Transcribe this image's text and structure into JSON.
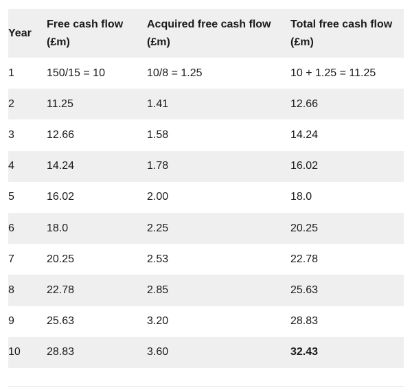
{
  "table": {
    "headers": {
      "year": "Year",
      "free_cash_flow": "Free cash flow (£m)",
      "acquired_free_cash_flow": "Acquired free cash flow (£m)",
      "total_free_cash_flow": "Total free cash flow (£m)"
    },
    "rows": [
      {
        "year": "1",
        "fcf": "150/15 = 10",
        "acquired": "10/8 = 1.25",
        "total": "10 + 1.25 = 11.25"
      },
      {
        "year": "2",
        "fcf": "11.25",
        "acquired": "1.41",
        "total": "12.66"
      },
      {
        "year": "3",
        "fcf": "12.66",
        "acquired": "1.58",
        "total": "14.24"
      },
      {
        "year": "4",
        "fcf": "14.24",
        "acquired": "1.78",
        "total": "16.02"
      },
      {
        "year": "5",
        "fcf": "16.02",
        "acquired": "2.00",
        "total": "18.0"
      },
      {
        "year": "6",
        "fcf": "18.0",
        "acquired": "2.25",
        "total": "20.25"
      },
      {
        "year": "7",
        "fcf": "20.25",
        "acquired": "2.53",
        "total": "22.78"
      },
      {
        "year": "8",
        "fcf": "22.78",
        "acquired": "2.85",
        "total": "25.63"
      },
      {
        "year": "9",
        "fcf": "25.63",
        "acquired": "3.20",
        "total": "28.83"
      },
      {
        "year": "10",
        "fcf": "28.83",
        "acquired": "3.60",
        "total": "32.43"
      }
    ]
  },
  "colors": {
    "header_bg": "#efefef",
    "stripe_bg": "#efefef",
    "text": "#1a1a1a"
  }
}
